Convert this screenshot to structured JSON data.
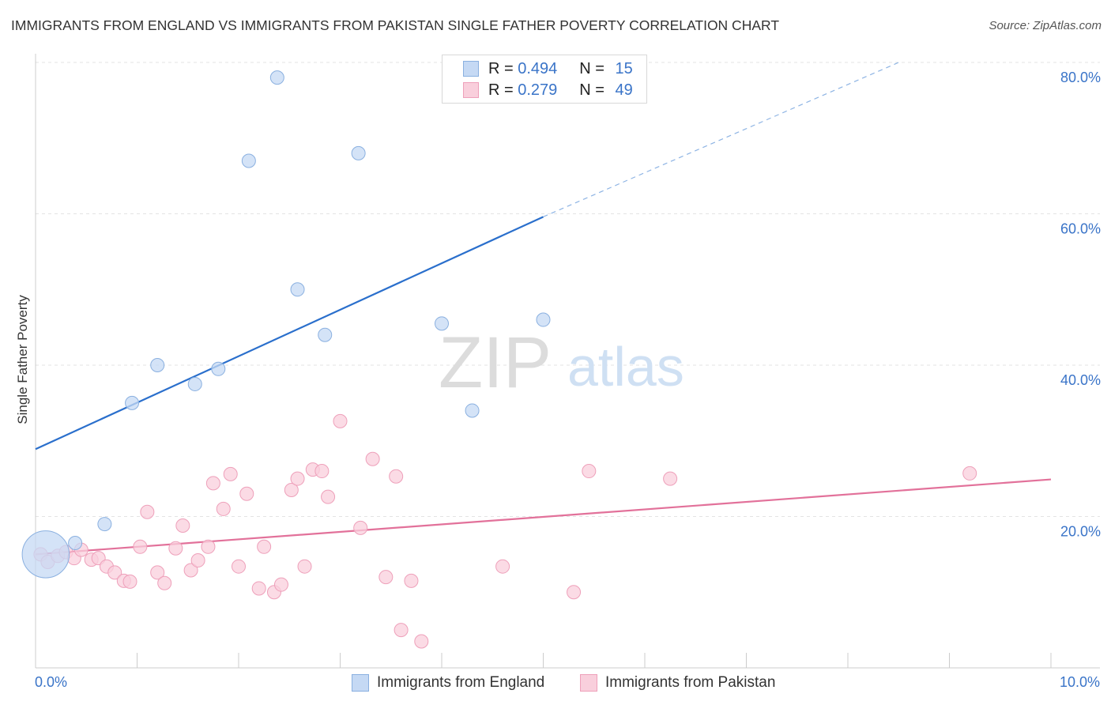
{
  "title": "IMMIGRANTS FROM ENGLAND VS IMMIGRANTS FROM PAKISTAN SINGLE FATHER POVERTY CORRELATION CHART",
  "source": "Source: ZipAtlas.com",
  "watermark": {
    "zip": "ZIP",
    "atlas": "atlas"
  },
  "legend": {
    "england": {
      "r_label": "R = ",
      "r_value": "0.494",
      "n_label": "N = ",
      "n_value": "15"
    },
    "pakistan": {
      "r_label": "R = ",
      "r_value": "0.279",
      "n_label": "N = ",
      "n_value": "49"
    }
  },
  "bottom_legend": {
    "england": "Immigrants from England",
    "pakistan": "Immigrants from Pakistan"
  },
  "colors": {
    "england_fill": "#c5d9f4",
    "england_stroke": "#8ab0e0",
    "england_line": "#2a6fcc",
    "pakistan_fill": "#f9cfdc",
    "pakistan_stroke": "#eea0ba",
    "pakistan_line": "#e2719a",
    "axis_text": "#3a74c8"
  },
  "chart_data": {
    "type": "scatter",
    "title": "IMMIGRANTS FROM ENGLAND VS IMMIGRANTS FROM PAKISTAN SINGLE FATHER POVERTY CORRELATION CHART",
    "xlabel": "",
    "ylabel": "Single Father Poverty",
    "xlim": [
      0,
      10
    ],
    "ylim": [
      0,
      80
    ],
    "x_tick_labels": [
      "0.0%",
      "10.0%"
    ],
    "y_ticks": [
      20,
      40,
      60,
      80
    ],
    "y_tick_labels": [
      "20.0%",
      "40.0%",
      "60.0%",
      "80.0%"
    ],
    "grid": true,
    "legend_position": "top-center",
    "series": [
      {
        "name": "Immigrants from England",
        "points": [
          [
            0.1,
            15.0
          ],
          [
            0.39,
            16.5
          ],
          [
            0.68,
            19.0
          ],
          [
            0.95,
            35.0
          ],
          [
            1.2,
            40.0
          ],
          [
            1.57,
            37.5
          ],
          [
            1.8,
            39.5
          ],
          [
            2.1,
            67.0
          ],
          [
            2.38,
            78.0
          ],
          [
            2.58,
            50.0
          ],
          [
            2.85,
            44.0
          ],
          [
            3.18,
            68.0
          ],
          [
            4.0,
            45.5
          ],
          [
            4.3,
            34.0
          ],
          [
            5.0,
            46.0
          ]
        ],
        "sizes": [
          3.5,
          1,
          1,
          1,
          1,
          1,
          1,
          1,
          1,
          1,
          1,
          1,
          1,
          1,
          1
        ],
        "trend": {
          "x": [
            0,
            5.0
          ],
          "y": [
            28.9,
            59.6
          ],
          "dashed_to": [
            8.5,
            80.0
          ]
        }
      },
      {
        "name": "Immigrants from Pakistan",
        "points": [
          [
            0.05,
            15.0
          ],
          [
            0.12,
            14.0
          ],
          [
            0.22,
            14.8
          ],
          [
            0.3,
            15.3
          ],
          [
            0.38,
            14.5
          ],
          [
            0.45,
            15.6
          ],
          [
            0.55,
            14.3
          ],
          [
            0.62,
            14.5
          ],
          [
            0.7,
            13.4
          ],
          [
            0.78,
            12.6
          ],
          [
            0.87,
            11.5
          ],
          [
            0.93,
            11.4
          ],
          [
            1.03,
            16.0
          ],
          [
            1.1,
            20.6
          ],
          [
            1.2,
            12.6
          ],
          [
            1.27,
            11.2
          ],
          [
            1.38,
            15.8
          ],
          [
            1.45,
            18.8
          ],
          [
            1.53,
            12.9
          ],
          [
            1.6,
            14.2
          ],
          [
            1.7,
            16.0
          ],
          [
            1.75,
            24.4
          ],
          [
            1.85,
            21.0
          ],
          [
            1.92,
            25.6
          ],
          [
            2.0,
            13.4
          ],
          [
            2.08,
            23.0
          ],
          [
            2.2,
            10.5
          ],
          [
            2.25,
            16.0
          ],
          [
            2.35,
            10.0
          ],
          [
            2.42,
            11.0
          ],
          [
            2.52,
            23.5
          ],
          [
            2.58,
            25.0
          ],
          [
            2.65,
            13.4
          ],
          [
            2.73,
            26.2
          ],
          [
            2.82,
            26.0
          ],
          [
            2.88,
            22.6
          ],
          [
            3.0,
            32.6
          ],
          [
            3.2,
            18.5
          ],
          [
            3.32,
            27.6
          ],
          [
            3.45,
            12.0
          ],
          [
            3.55,
            25.3
          ],
          [
            3.6,
            5.0
          ],
          [
            3.7,
            11.5
          ],
          [
            3.8,
            3.5
          ],
          [
            4.6,
            13.4
          ],
          [
            5.3,
            10.0
          ],
          [
            5.45,
            26.0
          ],
          [
            6.25,
            25.0
          ],
          [
            9.2,
            25.7
          ]
        ],
        "trend": {
          "x": [
            0,
            10
          ],
          "y": [
            15.0,
            24.9
          ]
        }
      }
    ]
  }
}
